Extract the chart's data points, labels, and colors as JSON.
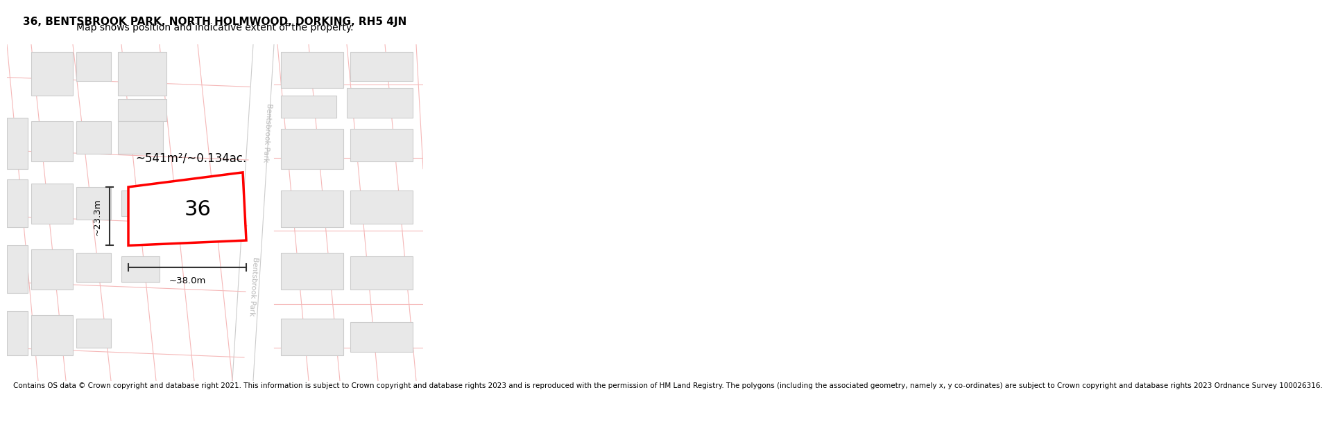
{
  "title_line1": "36, BENTSBROOK PARK, NORTH HOLMWOOD, DORKING, RH5 4JN",
  "title_line2": "Map shows position and indicative extent of the property.",
  "footer_text": "Contains OS data © Crown copyright and database right 2021. This information is subject to Crown copyright and database rights 2023 and is reproduced with the permission of HM Land Registry. The polygons (including the associated geometry, namely x, y co-ordinates) are subject to Crown copyright and database rights 2023 Ordnance Survey 100026316.",
  "background_color": "#ffffff",
  "map_bg_color": "#ffffff",
  "building_color": "#e8e8e8",
  "building_edge_color": "#cccccc",
  "plot_edge_color": "#ff0000",
  "parcel_line_color": "#f5b8b8",
  "parcel_edge_color": "#cccccc",
  "area_text": "~541m²/~0.134ac.",
  "number_label": "36",
  "dim_width": "~38.0m",
  "dim_height": "~23.3m",
  "road_label_upper": "Bentsbrook Park",
  "road_label_lower": "Bentsbrook Park",
  "title_fontsize": 11,
  "subtitle_fontsize": 10,
  "footer_fontsize": 7.5,
  "road_label_color": "#bbbbbb",
  "dim_color": "#333333"
}
